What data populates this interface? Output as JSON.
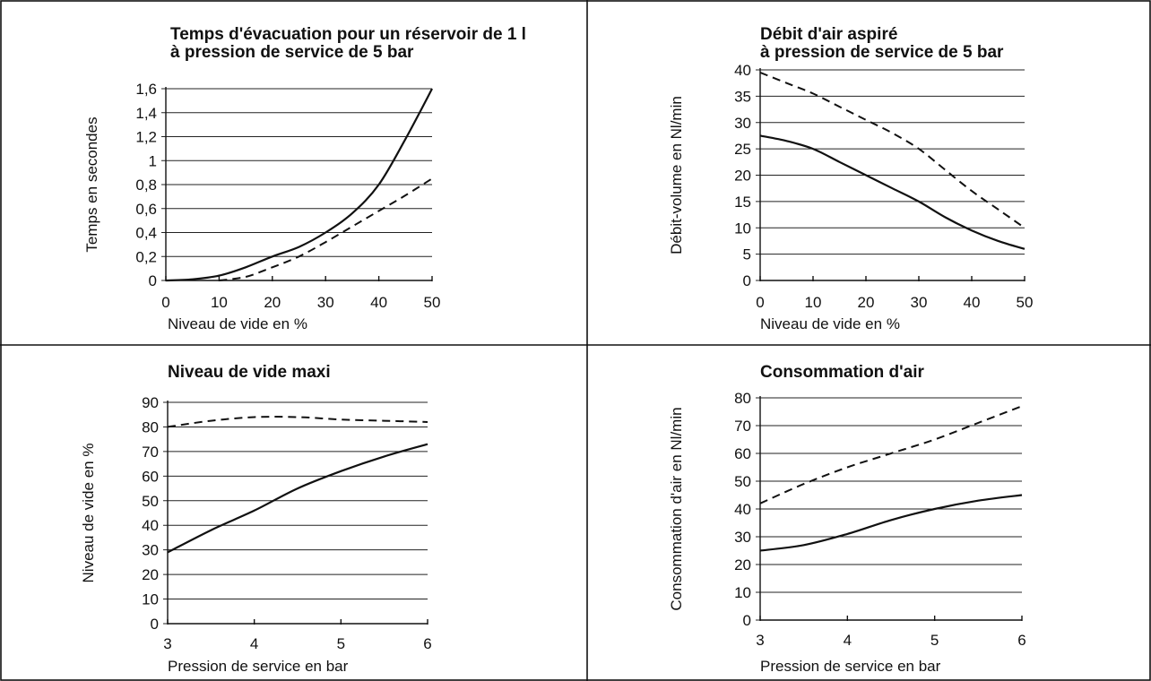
{
  "chart_data": [
    {
      "type": "line",
      "title": [
        "Temps d'évacuation pour un réservoir de 1 l",
        "à pression de service de 5 bar"
      ],
      "xlabel": "Niveau de vide en %",
      "ylabel": "Temps en secondes",
      "xlim": [
        0,
        50
      ],
      "ylim": [
        0,
        1.6
      ],
      "xticks": [
        0,
        10,
        20,
        30,
        40,
        50
      ],
      "yticks": [
        0,
        0.2,
        0.4,
        0.6,
        0.8,
        1,
        1.2,
        1.4,
        1.6
      ],
      "xtick_labels": [
        "0",
        "10",
        "20",
        "30",
        "40",
        "50"
      ],
      "ytick_labels": [
        "0",
        "0,2",
        "0,4",
        "0,6",
        "0,8",
        "1",
        "1,2",
        "1,4",
        "1,6"
      ],
      "grid": "horizontal",
      "series": [
        {
          "style": "solid",
          "x": [
            0,
            5,
            10,
            15,
            20,
            25,
            30,
            35,
            40,
            45,
            50
          ],
          "y": [
            0,
            0.01,
            0.04,
            0.11,
            0.2,
            0.28,
            0.4,
            0.56,
            0.8,
            1.18,
            1.6
          ]
        },
        {
          "style": "dashed",
          "x": [
            10,
            15,
            20,
            25,
            30,
            35,
            40,
            45,
            50
          ],
          "y": [
            0,
            0.03,
            0.11,
            0.2,
            0.32,
            0.45,
            0.58,
            0.71,
            0.85
          ]
        }
      ]
    },
    {
      "type": "line",
      "title": [
        "Débit d'air aspiré",
        "à pression de service de 5 bar"
      ],
      "xlabel": "Niveau de vide en %",
      "ylabel": "Débit-volume en Nl/min",
      "xlim": [
        0,
        50
      ],
      "ylim": [
        0,
        40
      ],
      "xticks": [
        0,
        10,
        20,
        30,
        40,
        50
      ],
      "yticks": [
        0,
        5,
        10,
        15,
        20,
        25,
        30,
        35,
        40
      ],
      "xtick_labels": [
        "0",
        "10",
        "20",
        "30",
        "40",
        "50"
      ],
      "ytick_labels": [
        "0",
        "5",
        "10",
        "15",
        "20",
        "25",
        "30",
        "35",
        "40"
      ],
      "grid": "horizontal",
      "series": [
        {
          "style": "solid",
          "x": [
            0,
            5,
            10,
            15,
            20,
            25,
            30,
            35,
            40,
            45,
            50
          ],
          "y": [
            27.5,
            26.5,
            25,
            22.5,
            20,
            17.5,
            15,
            12,
            9.5,
            7.5,
            6
          ]
        },
        {
          "style": "dashed",
          "x": [
            0,
            5,
            10,
            15,
            20,
            25,
            30,
            35,
            40,
            45,
            50
          ],
          "y": [
            39.5,
            37.5,
            35.5,
            33,
            30.5,
            28,
            25,
            21,
            17,
            13.5,
            10
          ]
        }
      ]
    },
    {
      "type": "line",
      "title": [
        "Niveau de vide maxi"
      ],
      "xlabel": "Pression de service en bar",
      "ylabel": "Niveau de vide en %",
      "xlim": [
        3,
        6
      ],
      "ylim": [
        0,
        90
      ],
      "xticks": [
        3,
        4,
        5,
        6
      ],
      "yticks": [
        0,
        10,
        20,
        30,
        40,
        50,
        60,
        70,
        80,
        90
      ],
      "xtick_labels": [
        "3",
        "4",
        "5",
        "6"
      ],
      "ytick_labels": [
        "0",
        "10",
        "20",
        "30",
        "40",
        "50",
        "60",
        "70",
        "80",
        "90"
      ],
      "grid": "horizontal",
      "series": [
        {
          "style": "solid",
          "x": [
            3,
            3.5,
            4,
            4.5,
            5,
            5.5,
            6
          ],
          "y": [
            29,
            38,
            46,
            55,
            62,
            68,
            73
          ]
        },
        {
          "style": "dashed",
          "x": [
            3,
            3.5,
            4,
            4.5,
            5,
            5.5,
            6
          ],
          "y": [
            80,
            82.5,
            84,
            84,
            83,
            82.5,
            82
          ]
        }
      ]
    },
    {
      "type": "line",
      "title": [
        "Consommation d'air"
      ],
      "xlabel": "Pression de service en bar",
      "ylabel": "Consommation d'air en Nl/min",
      "xlim": [
        3,
        6
      ],
      "ylim": [
        0,
        80
      ],
      "xticks": [
        3,
        4,
        5,
        6
      ],
      "yticks": [
        0,
        10,
        20,
        30,
        40,
        50,
        60,
        70,
        80
      ],
      "xtick_labels": [
        "3",
        "4",
        "5",
        "6"
      ],
      "ytick_labels": [
        "0",
        "10",
        "20",
        "30",
        "40",
        "50",
        "60",
        "70",
        "80"
      ],
      "grid": "horizontal",
      "series": [
        {
          "style": "solid",
          "x": [
            3,
            3.5,
            4,
            4.5,
            5,
            5.5,
            6
          ],
          "y": [
            25,
            27,
            31,
            36,
            40,
            43,
            45
          ]
        },
        {
          "style": "dashed",
          "x": [
            3,
            3.5,
            4,
            4.5,
            5,
            5.5,
            6
          ],
          "y": [
            42,
            49,
            55,
            60,
            65,
            71,
            77
          ]
        }
      ]
    }
  ]
}
